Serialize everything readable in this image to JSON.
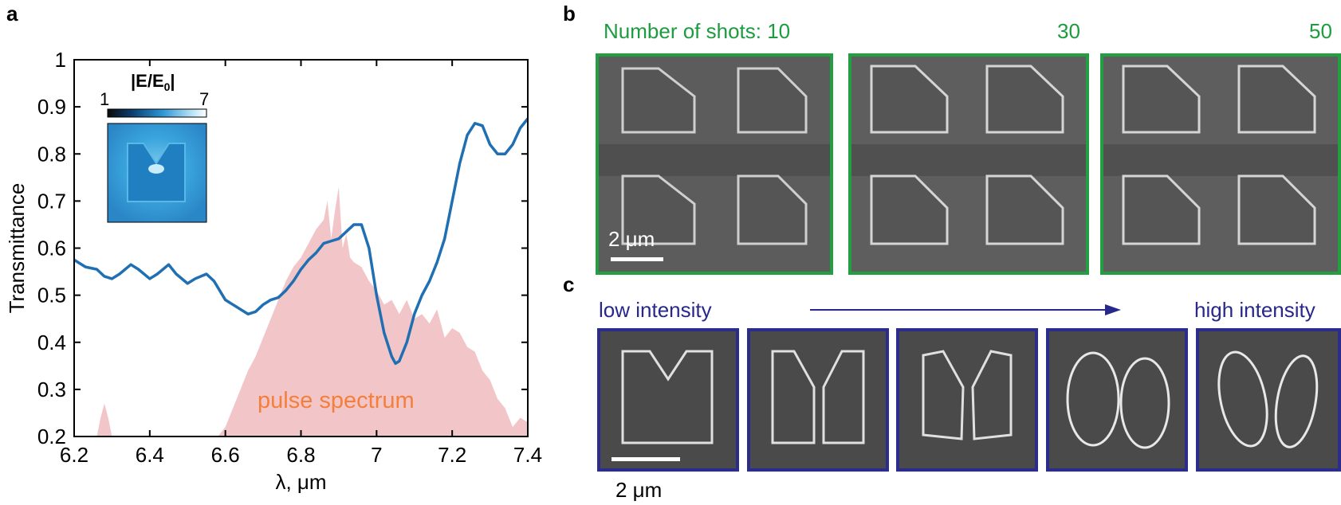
{
  "panels": {
    "a": "a",
    "b": "b",
    "c": "c"
  },
  "chart_data": {
    "type": "line",
    "xlabel": "λ, μm",
    "ylabel": "Transmittance",
    "xlim": [
      6.2,
      7.4
    ],
    "ylim": [
      0.2,
      1.0
    ],
    "xticks": [
      "6.2",
      "6.4",
      "6.6",
      "6.8",
      "7",
      "7.2",
      "7.4"
    ],
    "yticks": [
      "0.2",
      "0.3",
      "0.4",
      "0.5",
      "0.6",
      "0.7",
      "0.8",
      "0.9",
      "1"
    ],
    "series": [
      {
        "color": "#1f6fb2",
        "x": [
          6.2,
          6.23,
          6.26,
          6.28,
          6.3,
          6.32,
          6.35,
          6.37,
          6.4,
          6.42,
          6.45,
          6.47,
          6.5,
          6.52,
          6.55,
          6.57,
          6.6,
          6.62,
          6.64,
          6.66,
          6.68,
          6.7,
          6.72,
          6.74,
          6.76,
          6.78,
          6.8,
          6.82,
          6.84,
          6.86,
          6.88,
          6.9,
          6.92,
          6.94,
          6.96,
          6.98,
          7.0,
          7.02,
          7.04,
          7.05,
          7.06,
          7.08,
          7.1,
          7.12,
          7.14,
          7.16,
          7.18,
          7.2,
          7.22,
          7.24,
          7.26,
          7.28,
          7.3,
          7.32,
          7.34,
          7.36,
          7.38,
          7.4
        ],
        "y": [
          0.575,
          0.56,
          0.555,
          0.54,
          0.535,
          0.545,
          0.565,
          0.555,
          0.535,
          0.545,
          0.565,
          0.545,
          0.525,
          0.535,
          0.545,
          0.53,
          0.49,
          0.48,
          0.47,
          0.46,
          0.465,
          0.48,
          0.49,
          0.495,
          0.51,
          0.53,
          0.555,
          0.575,
          0.59,
          0.61,
          0.615,
          0.62,
          0.635,
          0.65,
          0.65,
          0.6,
          0.5,
          0.42,
          0.37,
          0.355,
          0.36,
          0.4,
          0.46,
          0.5,
          0.53,
          0.57,
          0.62,
          0.7,
          0.78,
          0.84,
          0.865,
          0.86,
          0.82,
          0.8,
          0.8,
          0.82,
          0.855,
          0.875
        ]
      }
    ],
    "area": {
      "label": "pulse spectrum",
      "color": "#f2c6c8",
      "x": [
        6.2,
        6.26,
        6.27,
        6.28,
        6.29,
        6.3,
        6.4,
        6.5,
        6.58,
        6.6,
        6.62,
        6.64,
        6.66,
        6.68,
        6.7,
        6.72,
        6.74,
        6.76,
        6.78,
        6.8,
        6.82,
        6.84,
        6.86,
        6.87,
        6.88,
        6.89,
        6.9,
        6.91,
        6.92,
        6.93,
        6.94,
        6.96,
        6.98,
        7.0,
        7.02,
        7.04,
        7.06,
        7.08,
        7.1,
        7.12,
        7.14,
        7.16,
        7.18,
        7.2,
        7.22,
        7.24,
        7.26,
        7.28,
        7.3,
        7.32,
        7.34,
        7.36,
        7.38,
        7.4
      ],
      "y": [
        0.2,
        0.2,
        0.24,
        0.27,
        0.24,
        0.2,
        0.2,
        0.2,
        0.2,
        0.22,
        0.26,
        0.3,
        0.34,
        0.37,
        0.41,
        0.45,
        0.49,
        0.53,
        0.56,
        0.58,
        0.61,
        0.64,
        0.66,
        0.7,
        0.62,
        0.68,
        0.73,
        0.6,
        0.63,
        0.58,
        0.57,
        0.56,
        0.53,
        0.51,
        0.48,
        0.49,
        0.46,
        0.49,
        0.45,
        0.46,
        0.44,
        0.47,
        0.41,
        0.43,
        0.42,
        0.39,
        0.38,
        0.34,
        0.32,
        0.28,
        0.26,
        0.22,
        0.24,
        0.23
      ]
    },
    "inset": {
      "title": "|E/E",
      "title_sub": "0",
      "title_end": "|",
      "scale_min": "1",
      "scale_max": "7"
    }
  },
  "panel_b": {
    "prefix": "Number of shots: 10",
    "shots": [
      "30",
      "50"
    ],
    "scalebar": "2 μm",
    "frame_color": "#22a041"
  },
  "panel_c": {
    "low": "low intensity",
    "high": "high intensity",
    "scalebar": "2 μm",
    "frame_color": "#2c2c8c"
  }
}
